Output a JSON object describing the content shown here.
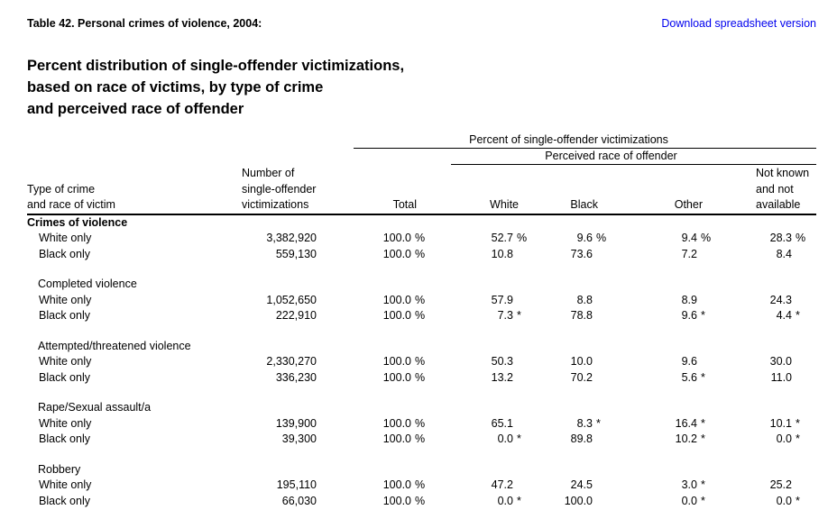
{
  "header": {
    "table_label": "Table 42. Personal crimes of violence, 2004:",
    "download_link": "Download spreadsheet version",
    "title_lines": [
      "Percent distribution of single-offender victimizations,",
      "based on race of victims, by type of crime",
      "and perceived race of offender"
    ]
  },
  "colors": {
    "link_blue": "#0000EE",
    "text": "#000000",
    "rule": "#000000"
  },
  "table": {
    "span_percent": "Percent of single-offender victimizations",
    "span_race": "Perceived race of offender",
    "columns": {
      "crime": [
        "Type of crime",
        "and race of victim"
      ],
      "number": [
        "Number of",
        "single-offender",
        "victimizations"
      ],
      "total": "Total",
      "white": "White",
      "black": "Black",
      "other": "Other",
      "not_known_lines": [
        "Not known",
        "and not",
        "available"
      ]
    },
    "sections": [
      {
        "label": "Crimes of violence",
        "bold": true,
        "rows": [
          {
            "label": "White only",
            "number": "3,382,920",
            "total": [
              "100.0",
              "%"
            ],
            "white": [
              "52.7",
              "%"
            ],
            "black": [
              "9.6",
              "%"
            ],
            "other": [
              "9.4",
              "%"
            ],
            "not_known": [
              "28.3",
              "%"
            ]
          },
          {
            "label": "Black only",
            "number": "559,130",
            "total": [
              "100.0",
              "%"
            ],
            "white": [
              "10.8",
              ""
            ],
            "black": [
              "73.6",
              ""
            ],
            "other": [
              "7.2",
              ""
            ],
            "not_known": [
              "8.4",
              ""
            ]
          }
        ]
      },
      {
        "label": "Completed violence",
        "bold": false,
        "rows": [
          {
            "label": "White only",
            "number": "1,052,650",
            "total": [
              "100.0",
              "%"
            ],
            "white": [
              "57.9",
              ""
            ],
            "black": [
              "8.8",
              ""
            ],
            "other": [
              "8.9",
              ""
            ],
            "not_known": [
              "24.3",
              ""
            ]
          },
          {
            "label": "Black only",
            "number": "222,910",
            "total": [
              "100.0",
              "%"
            ],
            "white": [
              "7.3",
              "*"
            ],
            "black": [
              "78.8",
              ""
            ],
            "other": [
              "9.6",
              "*"
            ],
            "not_known": [
              "4.4",
              "*"
            ]
          }
        ]
      },
      {
        "label": "Attempted/threatened violence",
        "bold": false,
        "rows": [
          {
            "label": "White only",
            "number": "2,330,270",
            "total": [
              "100.0",
              "%"
            ],
            "white": [
              "50.3",
              ""
            ],
            "black": [
              "10.0",
              ""
            ],
            "other": [
              "9.6",
              ""
            ],
            "not_known": [
              "30.0",
              ""
            ]
          },
          {
            "label": "Black only",
            "number": "336,230",
            "total": [
              "100.0",
              "%"
            ],
            "white": [
              "13.2",
              ""
            ],
            "black": [
              "70.2",
              ""
            ],
            "other": [
              "5.6",
              "*"
            ],
            "not_known": [
              "11.0",
              ""
            ]
          }
        ]
      },
      {
        "label": "Rape/Sexual assault/a",
        "bold": false,
        "rows": [
          {
            "label": "White only",
            "number": "139,900",
            "total": [
              "100.0",
              "%"
            ],
            "white": [
              "65.1",
              ""
            ],
            "black": [
              "8.3",
              "*"
            ],
            "other": [
              "16.4",
              "*"
            ],
            "not_known": [
              "10.1",
              "*"
            ]
          },
          {
            "label": "Black only",
            "number": "39,300",
            "total": [
              "100.0",
              "%"
            ],
            "white": [
              "0.0",
              "*"
            ],
            "black": [
              "89.8",
              ""
            ],
            "other": [
              "10.2",
              "*"
            ],
            "not_known": [
              "0.0",
              "*"
            ]
          }
        ]
      },
      {
        "label": "Robbery",
        "bold": false,
        "rows": [
          {
            "label": "White only",
            "number": "195,110",
            "total": [
              "100.0",
              "%"
            ],
            "white": [
              "47.2",
              ""
            ],
            "black": [
              "24.5",
              ""
            ],
            "other": [
              "3.0",
              "*"
            ],
            "not_known": [
              "25.2",
              ""
            ]
          },
          {
            "label": "Black only",
            "number": "66,030",
            "total": [
              "100.0",
              "%"
            ],
            "white": [
              "0.0",
              "*"
            ],
            "black": [
              "100.0",
              ""
            ],
            "other": [
              "0.0",
              "*"
            ],
            "not_known": [
              "0.0",
              "*"
            ]
          }
        ]
      }
    ]
  }
}
